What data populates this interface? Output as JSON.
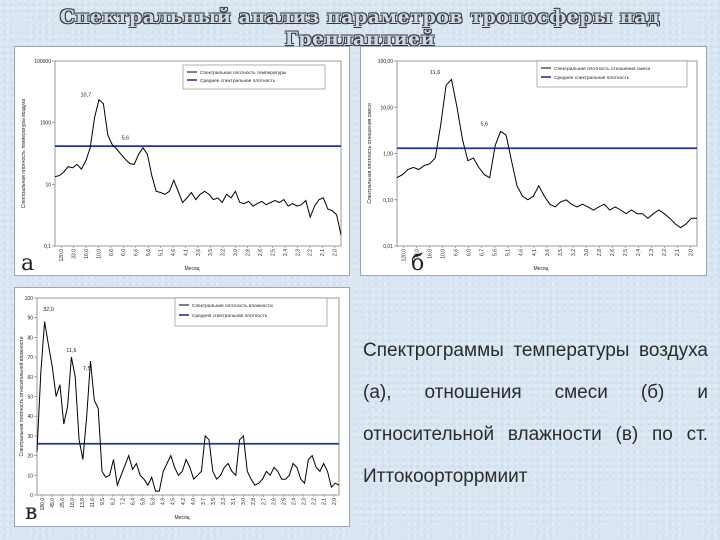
{
  "title": "Спектральный анализ параметров тропосферы над Гренландией",
  "caption": "Спектрограммы температуры воздуха (а), отношения смеси (б) и относительной влажности (в) по ст. Иттокоорторрмиит",
  "colors": {
    "series": "#000000",
    "mean": "#2233aa",
    "background": "#d9e6f2"
  },
  "chart_data": [
    {
      "panel_letter": "а",
      "type": "line",
      "yscale": "log",
      "ylim": [
        0.1,
        10000
      ],
      "y_ticks": [
        "0,1",
        "10",
        "1000",
        "100000"
      ],
      "ylabel": "Спектральная плотность температуры воздуха",
      "xlabel": "Месяц",
      "x_ticks": [
        "120,0",
        "33,0",
        "16,0",
        "10,0",
        "6,6",
        "6,0",
        "6,6",
        "5,6",
        "5,1",
        "4,6",
        "4,1",
        "3,6",
        "3,5",
        "3,2",
        "3,0",
        "2,8",
        "2,6",
        "2,5",
        "2,4",
        "2,3",
        "2,2",
        "2,1",
        "2,0"
      ],
      "legend": {
        "position": "top-right",
        "entries": [
          "Спектральная плотность температуры",
          "Среднее спектральная плотность"
        ]
      },
      "annotations": [
        {
          "text": "10,7",
          "x": 7,
          "y": 900
        },
        {
          "text": "5,6",
          "x": 16,
          "y": 62
        }
      ],
      "mean_value": 50,
      "series": [
        {
          "name": "Спектральная плотность температуры",
          "values": [
            7.5,
            8,
            10,
            14,
            13,
            16,
            12,
            20,
            45,
            300,
            900,
            700,
            100,
            55,
            42,
            30,
            22,
            17,
            16,
            30,
            45,
            30,
            8,
            3,
            2.8,
            2.5,
            3,
            6,
            3,
            1.5,
            2,
            2.8,
            1.8,
            2.5,
            3,
            2.5,
            1.8,
            2,
            1.5,
            2.5,
            2,
            3,
            1.5,
            1.4,
            1.6,
            1.2,
            1.4,
            1.6,
            1.3,
            1.5,
            1.7,
            1.5,
            1.8,
            1.2,
            1.4,
            1.2,
            1.3,
            1.7,
            0.6,
            1.2,
            1.8,
            2,
            1,
            0.9,
            0.7,
            0.2
          ]
        }
      ]
    },
    {
      "panel_letter": "б",
      "type": "line",
      "yscale": "log",
      "ylim": [
        0.01,
        100
      ],
      "y_ticks": [
        "0,01",
        "0,10",
        "1,00",
        "10,00",
        "100,00"
      ],
      "ylabel": "Спектральная плотность отношения смеси",
      "xlabel": "Месяц",
      "x_ticks": [
        "120,0",
        "33,0",
        "16,0",
        "10,0",
        "6,6",
        "6,0",
        "6,7",
        "5,6",
        "5,1",
        "4,6",
        "4,1",
        "3,6",
        "3,5",
        "3,2",
        "3,0",
        "2,8",
        "2,6",
        "2,5",
        "2,4",
        "2,3",
        "2,2",
        "2,1",
        "2,0"
      ],
      "legend": {
        "position": "top-right",
        "entries": [
          "Спектральная плотность отношения смеси",
          "Среднее спектральная плотность"
        ]
      },
      "annotations": [
        {
          "text": "11,6",
          "x": 7,
          "y": 45
        },
        {
          "text": "5,6",
          "x": 16,
          "y": 3.5
        }
      ],
      "mean_value": 1.3,
      "series": [
        {
          "name": "Спектральная плотность отношения смеси",
          "values": [
            0.3,
            0.35,
            0.45,
            0.5,
            0.45,
            0.55,
            0.6,
            0.8,
            4,
            30,
            40,
            10,
            2,
            0.7,
            0.8,
            0.5,
            0.35,
            0.3,
            1.5,
            3,
            2.5,
            0.7,
            0.2,
            0.12,
            0.1,
            0.12,
            0.2,
            0.12,
            0.08,
            0.07,
            0.09,
            0.1,
            0.08,
            0.07,
            0.08,
            0.07,
            0.06,
            0.07,
            0.08,
            0.06,
            0.07,
            0.06,
            0.05,
            0.06,
            0.05,
            0.05,
            0.04,
            0.05,
            0.06,
            0.05,
            0.04,
            0.03,
            0.025,
            0.03,
            0.04,
            0.04
          ]
        }
      ]
    },
    {
      "panel_letter": "в",
      "type": "line",
      "yscale": "linear",
      "ylim": [
        0,
        100
      ],
      "y_ticks": [
        "0",
        "10",
        "20",
        "30",
        "40",
        "50",
        "60",
        "70",
        "80",
        "90",
        "100"
      ],
      "ylabel": "Спектральная плотность относительной влажности",
      "xlabel": "Месяц",
      "x_ticks": [
        "180,0",
        "45,0",
        "25,6",
        "18,0",
        "13,8",
        "11,6",
        "9,5",
        "8,2",
        "7,2",
        "6,4",
        "5,8",
        "5,3",
        "4,9",
        "4,5",
        "4,2",
        "4,0",
        "3,7",
        "3,5",
        "3,3",
        "3,1",
        "3,0",
        "2,8",
        "2,7",
        "2,6",
        "2,5",
        "2,4",
        "2,3",
        "2,2",
        "2,1",
        "2,0"
      ],
      "legend": {
        "position": "top-right",
        "entries": [
          "Спектральная плотность влажности",
          "Средняя спектральная плотность"
        ]
      },
      "annotations": [
        {
          "text": "32,0",
          "x": 3,
          "y": 92
        },
        {
          "text": "11,6",
          "x": 9,
          "y": 71
        },
        {
          "text": "7,5",
          "x": 13,
          "y": 62
        }
      ],
      "mean_value": 26,
      "series": [
        {
          "name": "Спектральная плотность влажности",
          "values": [
            22,
            62,
            88,
            76,
            65,
            50,
            56,
            36,
            45,
            70,
            60,
            28,
            18,
            40,
            68,
            48,
            44,
            12,
            9,
            10,
            18,
            5,
            10,
            15,
            20,
            13,
            16,
            10,
            8,
            5,
            9,
            2,
            2,
            12,
            16,
            20,
            14,
            10,
            12,
            18,
            14,
            8,
            10,
            12,
            30,
            28,
            12,
            8,
            10,
            14,
            16,
            12,
            10,
            28,
            30,
            12,
            8,
            5,
            6,
            8,
            12,
            10,
            14,
            12,
            8,
            8,
            10,
            16,
            14,
            8,
            6,
            18,
            20,
            14,
            12,
            16,
            12,
            4,
            6,
            5
          ]
        }
      ]
    }
  ]
}
